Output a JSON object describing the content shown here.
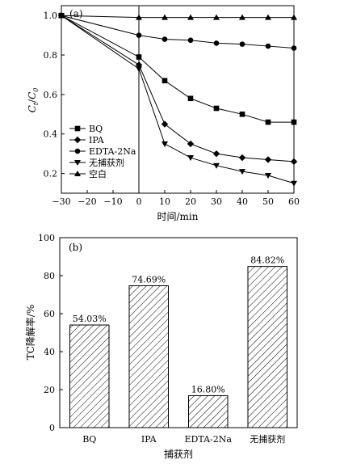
{
  "chart_data": [
    {
      "type": "line",
      "panel_label": "(a)",
      "xlabel": "时间/min",
      "ylabel_main": "C",
      "ylabel_sub1": "t",
      "ylabel_slash": "/",
      "ylabel_main2": "C",
      "ylabel_sub2": "0",
      "x": [
        -30,
        0,
        10,
        20,
        30,
        40,
        50,
        60
      ],
      "xlim": [
        -30,
        60
      ],
      "ylim": [
        0.1,
        1.05
      ],
      "xticks": [
        "-30",
        "-20",
        "-10",
        "0",
        "10",
        "20",
        "30",
        "40",
        "50",
        "60"
      ],
      "yticks": [
        "0.2",
        "0.4",
        "0.6",
        "0.8",
        "1.0"
      ],
      "vline_at": 0,
      "legend_position": "bottom-left",
      "series": [
        {
          "name": "BQ",
          "marker": "square",
          "values": [
            1.0,
            0.79,
            0.67,
            0.58,
            0.53,
            0.5,
            0.46,
            0.46
          ]
        },
        {
          "name": "IPA",
          "marker": "diamond",
          "values": [
            1.0,
            0.75,
            0.45,
            0.35,
            0.3,
            0.28,
            0.27,
            0.26
          ]
        },
        {
          "name": "EDTA-2Na",
          "marker": "circle",
          "values": [
            1.0,
            0.9,
            0.88,
            0.875,
            0.86,
            0.855,
            0.845,
            0.835
          ]
        },
        {
          "name": "无捕获剂",
          "marker": "triangle-down",
          "values": [
            1.0,
            0.73,
            0.35,
            0.28,
            0.24,
            0.21,
            0.19,
            0.15
          ]
        },
        {
          "name": "空白",
          "marker": "triangle-up",
          "values": [
            1.0,
            0.99,
            0.99,
            0.99,
            0.99,
            0.99,
            0.99,
            0.99
          ]
        }
      ]
    },
    {
      "type": "bar",
      "panel_label": "(b)",
      "categories": [
        "BQ",
        "IPA",
        "EDTA-2Na",
        "无捕获剂"
      ],
      "values": [
        54.03,
        74.69,
        16.8,
        84.82
      ],
      "data_labels": [
        "54.03%",
        "74.69%",
        "16.80%",
        "84.82%"
      ],
      "xlabel": "捕获剂",
      "ylabel": "TC降解率/%",
      "ylim": [
        0,
        100
      ],
      "yticks": [
        "0",
        "20",
        "40",
        "60",
        "80",
        "100"
      ],
      "fill": "diagonal-hatch"
    }
  ]
}
